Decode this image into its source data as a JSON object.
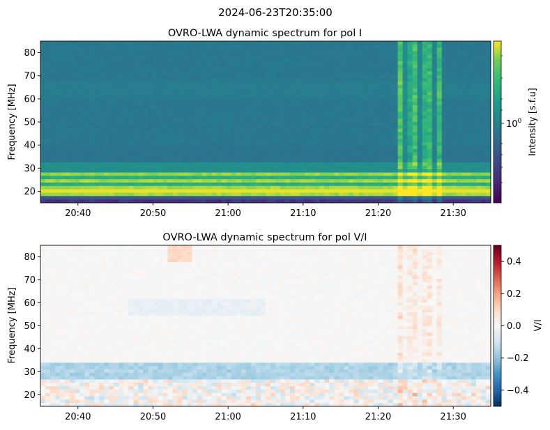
{
  "figure": {
    "suptitle": "2024-06-23T20:35:00"
  },
  "chart_data": [
    {
      "type": "heatmap",
      "title": "OVRO-LWA dynamic spectrum for pol I",
      "xlabel": "",
      "ylabel": "Frequency [MHz]",
      "x_ticks": [
        "20:40",
        "20:50",
        "21:00",
        "21:10",
        "21:20",
        "21:30"
      ],
      "x_range": [
        "20:35",
        "21:35"
      ],
      "y_ticks": [
        20,
        30,
        40,
        50,
        60,
        70,
        80
      ],
      "ylim": [
        15,
        85
      ],
      "colormap": "viridis",
      "colorbar": {
        "label": "Intensity [s.f.u]",
        "scale": "log",
        "tick_label": "10^0",
        "tick_base": "10",
        "tick_exp": "0"
      },
      "features": {
        "background_level": "low, nearly uniform above 33 MHz",
        "bright_band_MHz": [
          18,
          28
        ],
        "burst_times": [
          "21:23",
          "21:24",
          "21:25",
          "21:26",
          "21:27",
          "21:28"
        ]
      }
    },
    {
      "type": "heatmap",
      "title": "OVRO-LWA dynamic spectrum for pol V/I",
      "xlabel": "",
      "ylabel": "Frequency [MHz]",
      "x_ticks": [
        "20:40",
        "20:50",
        "21:00",
        "21:10",
        "21:20",
        "21:30"
      ],
      "x_range": [
        "20:35",
        "21:35"
      ],
      "y_ticks": [
        20,
        30,
        40,
        50,
        60,
        70,
        80
      ],
      "ylim": [
        15,
        85
      ],
      "colormap": "RdBu_r",
      "colorbar": {
        "label": "V/I",
        "range": [
          -0.5,
          0.5
        ],
        "ticks": [
          "0.4",
          "0.2",
          "0.0",
          "−0.2",
          "−0.4"
        ]
      },
      "features": {
        "negative_band_MHz": [
          27,
          34
        ],
        "burst_times": [
          "21:23",
          "21:24",
          "21:25",
          "21:26",
          "21:27",
          "21:28"
        ]
      }
    }
  ]
}
